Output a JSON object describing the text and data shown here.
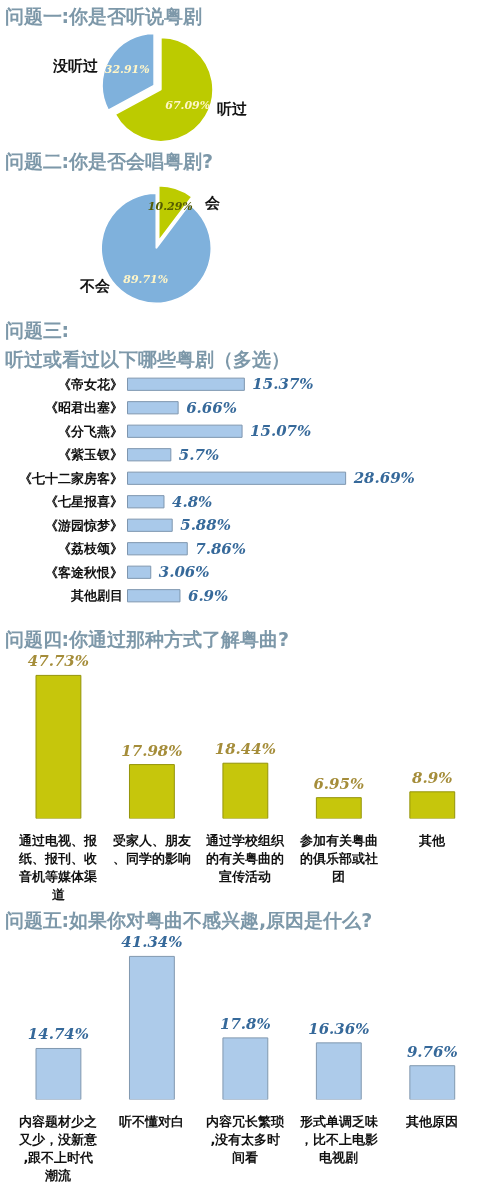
{
  "chart_data": [
    {
      "type": "pie",
      "title": "问题一:你是否听说粤剧",
      "categories": [
        "听过",
        "没听过"
      ],
      "values": [
        67.09,
        32.91
      ],
      "colors": [
        "#bccb00",
        "#7fb1dc"
      ],
      "value_labels": [
        "67.09%",
        "32.91%"
      ]
    },
    {
      "type": "pie",
      "title": "问题二:你是否会唱粤剧?",
      "categories": [
        "会",
        "不会"
      ],
      "values": [
        10.29,
        89.71
      ],
      "colors": [
        "#bccb00",
        "#7fb1dc"
      ],
      "value_labels": [
        "10.29%",
        "89.71%"
      ]
    },
    {
      "type": "bar",
      "orientation": "horizontal",
      "title": "问题三:",
      "subtitle": "听过或看过以下哪些粤剧（多选）",
      "categories": [
        "《帝女花》",
        "《昭君出塞》",
        "《分飞燕》",
        "《紫玉钗》",
        "《七十二家房客》",
        "《七星报喜》",
        "《游园惊梦》",
        "《荔枝颂》",
        "《客途秋恨》",
        "其他剧目"
      ],
      "values": [
        15.37,
        6.66,
        15.07,
        5.7,
        28.69,
        4.8,
        5.88,
        7.86,
        3.06,
        6.9
      ],
      "color": "#a9c9ea",
      "value_labels": [
        "15.37%",
        "6.66%",
        "15.07%",
        "5.7%",
        "28.69%",
        "4.8%",
        "5.88%",
        "7.86%",
        "3.06%",
        "6.9%"
      ]
    },
    {
      "type": "bar",
      "title": "问题四:你通过那种方式了解粤曲?",
      "categories": [
        "通过电视、报纸、报刊、收音机等媒体渠道",
        "受家人、朋友、同学的影响",
        "通过学校组织的有关粤曲的宣传活动",
        "参加有关粤曲的俱乐部或社团",
        "其他"
      ],
      "values": [
        47.73,
        17.98,
        18.44,
        6.95,
        8.9
      ],
      "color": "#c6c60c",
      "value_labels": [
        "47.73%",
        "17.98%",
        "18.44%",
        "6.95%",
        "8.9%"
      ]
    },
    {
      "type": "bar",
      "title": "问题五:如果你对粤曲不感兴趣,原因是什么?",
      "categories": [
        "内容题材少之又少，没新意,跟不上时代潮流",
        "听不懂对白",
        "内容冗长繁琐,没有太多时间看",
        "形式单调乏味，比不上电影电视剧",
        "其他原因"
      ],
      "values": [
        14.74,
        41.34,
        17.8,
        16.36,
        9.76
      ],
      "color": "#adcbea",
      "value_labels": [
        "14.74%",
        "41.34%",
        "17.8%",
        "16.36%",
        "9.76%"
      ]
    }
  ]
}
